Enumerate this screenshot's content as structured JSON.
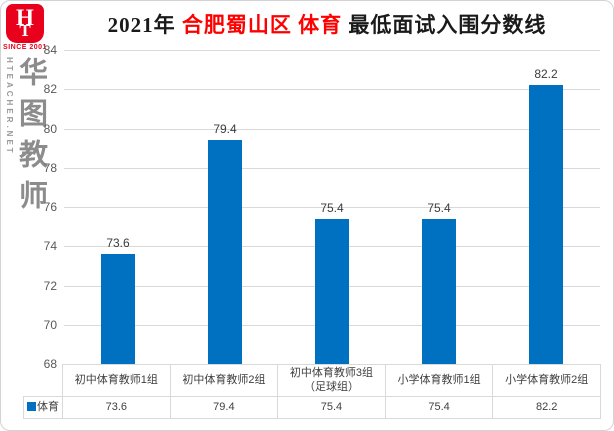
{
  "logo": {
    "monogram_top": "H",
    "monogram_bottom": "T",
    "since": "SINCE 2001",
    "site_vertical": "HTEACHER.NET",
    "brand_vertical": "华图教师",
    "red": "#e8001c",
    "gray": "#8c8c8c"
  },
  "title": {
    "parts": [
      {
        "text": "2021年 ",
        "color": "#1a1a1a"
      },
      {
        "text": "合肥蜀山区 ",
        "color": "#fe0000"
      },
      {
        "text": "体育",
        "color": "#fe0000"
      },
      {
        "text": " 最低面试入围分数线",
        "color": "#1a1a1a"
      }
    ]
  },
  "chart_data": {
    "type": "bar",
    "title": "2021年 合肥蜀山区 体育 最低面试入围分数线",
    "categories": [
      "初中体育教师1组",
      "初中体育教师2组",
      "初中体育教师3组（足球组）",
      "小学体育教师1组",
      "小学体育教师2组"
    ],
    "series": [
      {
        "name": "体育",
        "values": [
          73.6,
          79.4,
          75.4,
          75.4,
          82.2
        ]
      }
    ],
    "ylim": [
      68,
      84
    ],
    "ytick_step": 2,
    "grid": true,
    "gridline_color": "#d9d9d9",
    "bar_color": "#0070c0",
    "data_labels": true,
    "legend_position": "bottom",
    "xlabel": "",
    "ylabel": ""
  }
}
